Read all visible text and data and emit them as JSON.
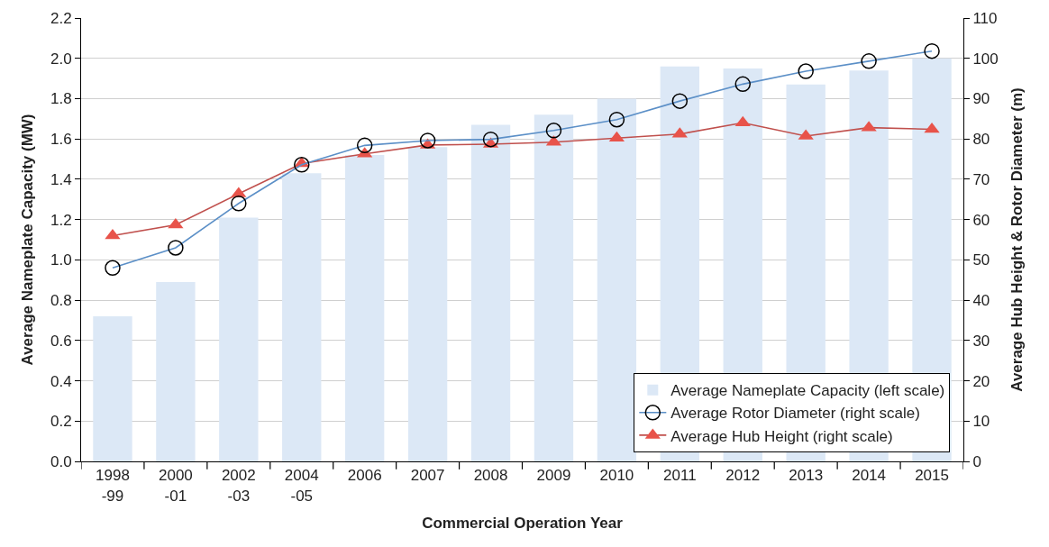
{
  "chart_data": {
    "type": "bar",
    "categories": [
      "1998\n-99",
      "2000\n-01",
      "2002\n-03",
      "2004\n-05",
      "2006",
      "2007",
      "2008",
      "2009",
      "2010",
      "2011",
      "2012",
      "2013",
      "2014",
      "2015"
    ],
    "xlabel": "Commercial Operation Year",
    "ylabel": "Average Nameplate Capacity (MW)",
    "y2label": "Average Hub Height & Rotor Diameter (m)",
    "series": [
      {
        "name": "Average Nameplate Capacity (left scale)",
        "color": "#dce8f6",
        "values": [
          0.72,
          0.89,
          1.21,
          1.43,
          1.52,
          1.56,
          1.67,
          1.72,
          1.8,
          1.96,
          1.95,
          1.87,
          1.94,
          2.0
        ]
      },
      {
        "name": "Average Rotor Diameter (right scale)",
        "type": "line",
        "axis": "y2",
        "color": "#5b8fc7",
        "marker": "circle",
        "values": [
          48,
          53,
          64,
          73.6,
          78.4,
          79.6,
          79.9,
          82.1,
          84.8,
          89.4,
          93.6,
          96.8,
          99.3,
          101.8
        ]
      },
      {
        "name": "Average Hub Height (right scale)",
        "type": "line",
        "axis": "y2",
        "color": "#c0504d",
        "marker": "triangle",
        "values": [
          56,
          58.7,
          66.4,
          73.9,
          76.3,
          78.5,
          78.7,
          79.2,
          80.2,
          81.2,
          84,
          80.7,
          82.8,
          82.4
        ]
      }
    ],
    "ylim": [
      0,
      2.2
    ],
    "yticks": [
      {
        "value": 0,
        "label": "0.0"
      },
      0.2,
      0.4,
      0.6,
      0.8,
      {
        "value": 1,
        "label": "1.0"
      },
      1.2,
      1.4,
      1.6,
      1.8,
      {
        "value": 2,
        "label": "2.0"
      },
      2.2
    ],
    "y2lim": [
      0,
      110
    ],
    "y2ticks": [
      0,
      10,
      20,
      30,
      40,
      50,
      60,
      70,
      80,
      90,
      100,
      110
    ],
    "grid": "y",
    "legend": "bottom right"
  }
}
